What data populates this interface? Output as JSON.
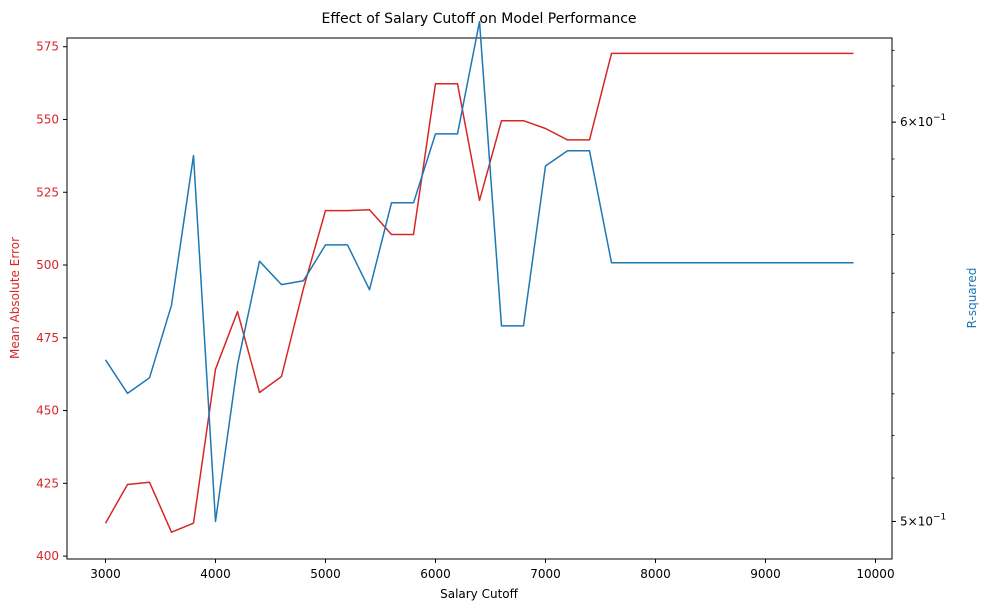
{
  "chart_data": {
    "type": "line",
    "title": "Effect of Salary Cutoff on Model Performance",
    "xlabel": "Salary Cutoff",
    "ylabel_left": "Mean Absolute Error",
    "ylabel_right": "R-squared",
    "xlim": [
      2650,
      10150
    ],
    "ylim_left": [
      399,
      578
    ],
    "ylim_right": [
      0.4915,
      0.6235
    ],
    "y_right_scale": "log",
    "x_ticks": [
      3000,
      4000,
      5000,
      6000,
      7000,
      8000,
      9000,
      10000
    ],
    "x_tick_labels": [
      "3000",
      "4000",
      "5000",
      "6000",
      "7000",
      "8000",
      "9000",
      "10000"
    ],
    "y_left_ticks": [
      400,
      425,
      450,
      475,
      500,
      525,
      550,
      575
    ],
    "y_left_tick_labels": [
      "400",
      "425",
      "450",
      "475",
      "500",
      "525",
      "550",
      "575"
    ],
    "y_right_ticks": [
      0.5,
      0.6
    ],
    "y_right_tick_labels_base": [
      "5",
      "6"
    ],
    "y_right_tick_labels_suffix": "×10",
    "y_right_tick_labels_exp": "−1",
    "grid": false,
    "x": [
      3000,
      3200,
      3400,
      3600,
      3800,
      4000,
      4200,
      4400,
      4600,
      4800,
      5000,
      5200,
      5400,
      5600,
      5800,
      6000,
      6200,
      6400,
      6600,
      6800,
      7000,
      7200,
      7400,
      7600,
      7800,
      8000,
      8200,
      8400,
      8600,
      8800,
      9000,
      9200,
      9400,
      9600,
      9800
    ],
    "series": [
      {
        "axis": "left",
        "color": "#d62728",
        "values": [
          411.3,
          424.6,
          425.4,
          408.2,
          411.3,
          464.2,
          484.0,
          456.2,
          461.7,
          492.0,
          518.7,
          518.7,
          519.0,
          510.5,
          510.5,
          562.3,
          562.3,
          522.2,
          549.6,
          549.6,
          546.9,
          543.0,
          543.0,
          572.7,
          572.7,
          572.7,
          572.7,
          572.7,
          572.7,
          572.7,
          572.7,
          572.7,
          572.7,
          572.7,
          572.7
        ]
      },
      {
        "axis": "right",
        "color": "#1f77b4",
        "values": [
          0.5383,
          0.5301,
          0.5339,
          0.5519,
          0.5909,
          0.5,
          0.5371,
          0.5631,
          0.5571,
          0.5581,
          0.5673,
          0.5673,
          0.5558,
          0.5783,
          0.5783,
          0.5968,
          0.5968,
          0.6282,
          0.5467,
          0.5467,
          0.5881,
          0.5922,
          0.5922,
          0.5627,
          0.5627,
          0.5627,
          0.5627,
          0.5627,
          0.5627,
          0.5627,
          0.5627,
          0.5627,
          0.5627,
          0.5627,
          0.5627
        ]
      }
    ]
  }
}
